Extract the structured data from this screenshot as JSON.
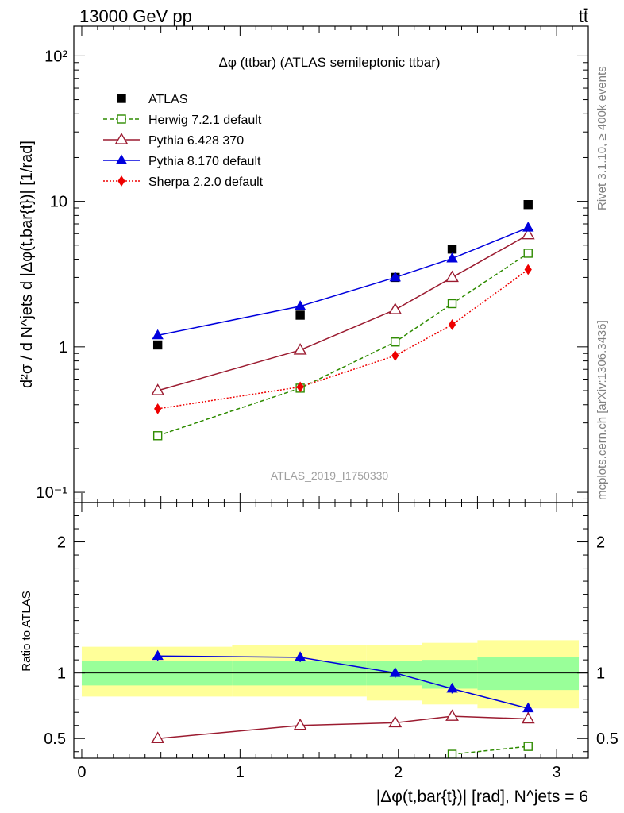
{
  "header": {
    "left": "13000 GeV pp",
    "right": "tt̄"
  },
  "side_text": {
    "upper": "Rivet 3.1.10, ≥ 400k events",
    "lower": "mcplots.cern.ch [arXiv:1306.3436]"
  },
  "watermark": "ATLAS_2019_I1750330",
  "colors": {
    "atlas": "#000000",
    "herwig": "#2e8b00",
    "pythia6": "#9b1b30",
    "pythia8": "#0000dd",
    "sherpa": "#ee0000",
    "band_inner": "#99ff99",
    "band_outer": "#ffff99"
  },
  "chart_data": [
    {
      "type": "scatter",
      "title": "Δφ (ttbar) (ATLAS semileptonic ttbar)",
      "ylabel": "d²σ / d N^jets d |Δφ(t,bar{t})| [1/rad]",
      "yscale": "log",
      "ylim": [
        0.085,
        160
      ],
      "xlim": [
        -0.05,
        3.2
      ],
      "y_ticklabels": [
        "10⁻¹",
        "1",
        "10",
        "10²"
      ],
      "legend_position": "top-left",
      "series": [
        {
          "name": "ATLAS",
          "marker": "filled-square",
          "x": [
            0.48,
            1.38,
            1.98,
            2.34,
            2.82
          ],
          "y": [
            1.03,
            1.65,
            3.0,
            4.7,
            9.5
          ]
        },
        {
          "name": "Herwig 7.2.1 default",
          "marker": "open-square",
          "line": "dashed",
          "x": [
            0.48,
            1.38,
            1.98,
            2.34,
            2.82
          ],
          "y": [
            0.245,
            0.52,
            1.08,
            1.98,
            4.4
          ]
        },
        {
          "name": "Pythia 6.428 370",
          "marker": "open-triangle",
          "line": "solid",
          "x": [
            0.48,
            1.38,
            1.98,
            2.34,
            2.82
          ],
          "y": [
            0.5,
            0.95,
            1.8,
            3.0,
            5.9
          ]
        },
        {
          "name": "Pythia 8.170 default",
          "marker": "filled-triangle",
          "line": "solid",
          "x": [
            0.48,
            1.38,
            1.98,
            2.34,
            2.82
          ],
          "y": [
            1.2,
            1.9,
            3.0,
            4.05,
            6.6
          ]
        },
        {
          "name": "Sherpa 2.2.0 default",
          "marker": "filled-diamond",
          "line": "dotted",
          "x": [
            0.48,
            1.38,
            1.98,
            2.34,
            2.82
          ],
          "y": [
            0.375,
            0.53,
            0.87,
            1.42,
            3.4
          ]
        }
      ]
    },
    {
      "type": "line",
      "ylabel": "Ratio to ATLAS",
      "xlabel": "|Δφ(t,bar{t})| [rad], N^jets = 6",
      "ylim": [
        0.35,
        2.3
      ],
      "xlim": [
        -0.05,
        3.2
      ],
      "x_ticklabels": [
        "0",
        "1",
        "2",
        "3"
      ],
      "y_ticklabels": [
        "0.5",
        "1",
        "2"
      ],
      "bin_edges": [
        0.0,
        0.95,
        1.8,
        2.15,
        2.5,
        3.14
      ],
      "band_inner": [
        [
          0.905,
          1.095
        ],
        [
          0.905,
          1.09
        ],
        [
          0.905,
          1.09
        ],
        [
          0.88,
          1.1
        ],
        [
          0.87,
          1.12
        ]
      ],
      "band_outer": [
        [
          0.82,
          1.2
        ],
        [
          0.82,
          1.21
        ],
        [
          0.79,
          1.21
        ],
        [
          0.76,
          1.23
        ],
        [
          0.73,
          1.25
        ]
      ],
      "series": [
        {
          "name": "Pythia 8.170 default",
          "x": [
            0.48,
            1.38,
            1.98,
            2.34,
            2.82
          ],
          "y": [
            1.13,
            1.12,
            1.0,
            0.88,
            0.73
          ]
        },
        {
          "name": "Pythia 6.428 370",
          "x": [
            0.48,
            1.38,
            1.98,
            2.34,
            2.82
          ],
          "y": [
            0.5,
            0.6,
            0.62,
            0.67,
            0.65
          ]
        },
        {
          "name": "Herwig 7.2.1 default",
          "x": [
            2.34,
            2.82
          ],
          "y": [
            0.38,
            0.44
          ]
        }
      ]
    }
  ]
}
